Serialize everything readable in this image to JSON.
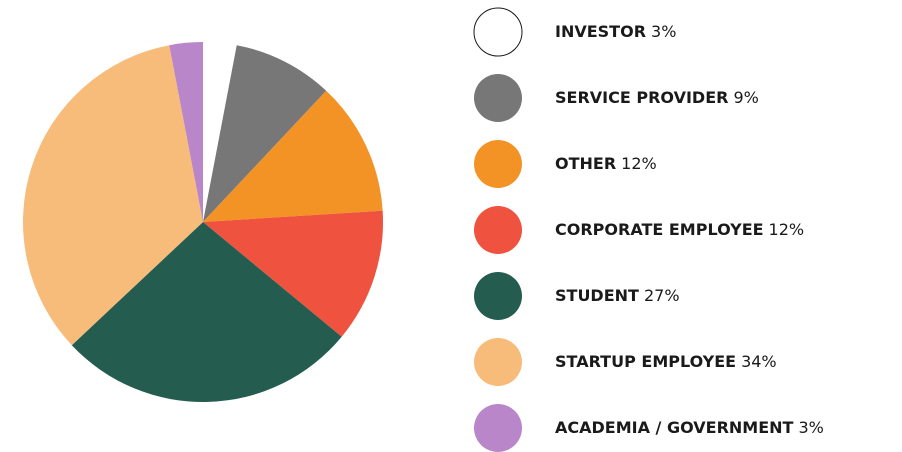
{
  "chart_data": {
    "type": "pie",
    "categories": [
      "INVESTOR",
      "SERVICE PROVIDER",
      "OTHER",
      "CORPORATE EMPLOYEE",
      "STUDENT",
      "STARTUP EMPLOYEE",
      "ACADEMIA / GOVERNMENT"
    ],
    "values": [
      3,
      9,
      12,
      12,
      27,
      34,
      3
    ],
    "value_labels": [
      "3%",
      "9%",
      "12%",
      "12%",
      "27%",
      "34%",
      "3%"
    ],
    "colors": [
      "#ffffff",
      "#777777",
      "#f39325",
      "#ef533f",
      "#245c50",
      "#f8bc7a",
      "#b886c9"
    ]
  }
}
